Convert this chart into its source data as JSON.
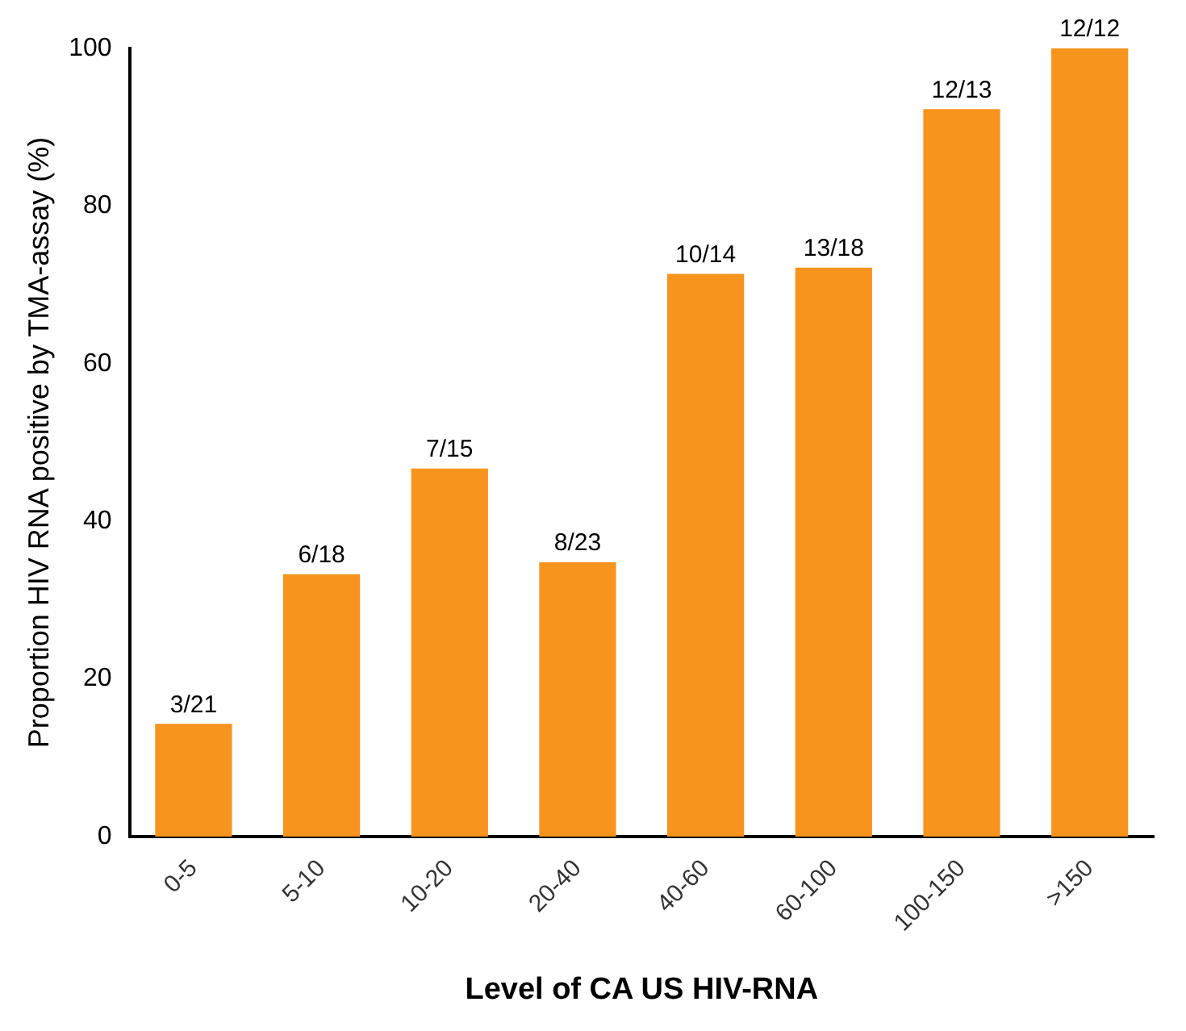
{
  "chart_data": {
    "type": "bar",
    "xlabel": "Level of CA US HIV-RNA",
    "ylabel": "Proportion HIV RNA positive by TMA-assay (%)",
    "categories": [
      "0-5",
      "5-10",
      "10-20",
      "20-40",
      "40-60",
      "60-100",
      "100-150",
      ">150"
    ],
    "values": [
      14.3,
      33.3,
      46.7,
      34.8,
      71.4,
      72.2,
      92.3,
      100
    ],
    "annotations": [
      {
        "text": "3/21",
        "x": "0-5",
        "y": 14.3
      },
      {
        "text": "6/18",
        "x": "5-10",
        "y": 33.3
      },
      {
        "text": "7/15",
        "x": "10-20",
        "y": 46.7
      },
      {
        "text": "8/23",
        "x": "20-40",
        "y": 34.8
      },
      {
        "text": "10/14",
        "x": "40-60",
        "y": 71.4
      },
      {
        "text": "13/18",
        "x": "60-100",
        "y": 72.2
      },
      {
        "text": "12/13",
        "x": "100-150",
        "y": 92.3
      },
      {
        "text": "12/12",
        "x": ">150",
        "y": 100
      }
    ],
    "color": "#f7941d",
    "ylim": [
      0,
      100
    ],
    "yticks": [
      0,
      20,
      40,
      60,
      80,
      100
    ],
    "grid": false,
    "legend": false
  }
}
